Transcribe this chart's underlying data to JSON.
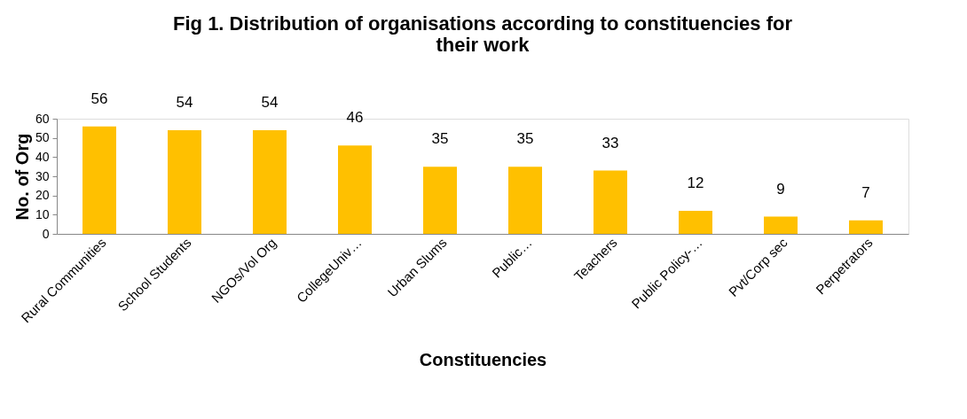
{
  "chart_data": {
    "type": "bar",
    "title": "Fig 1. Distribution of organisations according to constituencies for their work",
    "xlabel": "Constituencies",
    "ylabel": "No. of Org",
    "categories": [
      "Rural Communities",
      "School Students",
      "NGOs/Vol Org",
      "CollegeUniv…",
      "Urban Slums",
      "Public…",
      "Teachers",
      "Public Policy-…",
      "Pvt/Corp sec",
      "Perpetrators"
    ],
    "values": [
      56,
      54,
      54,
      46,
      35,
      35,
      33,
      12,
      9,
      7
    ],
    "color": "#ffc000",
    "ylim": [
      0,
      60
    ],
    "yticks": [
      0,
      10,
      20,
      30,
      40,
      50,
      60
    ],
    "data_labels": true
  }
}
